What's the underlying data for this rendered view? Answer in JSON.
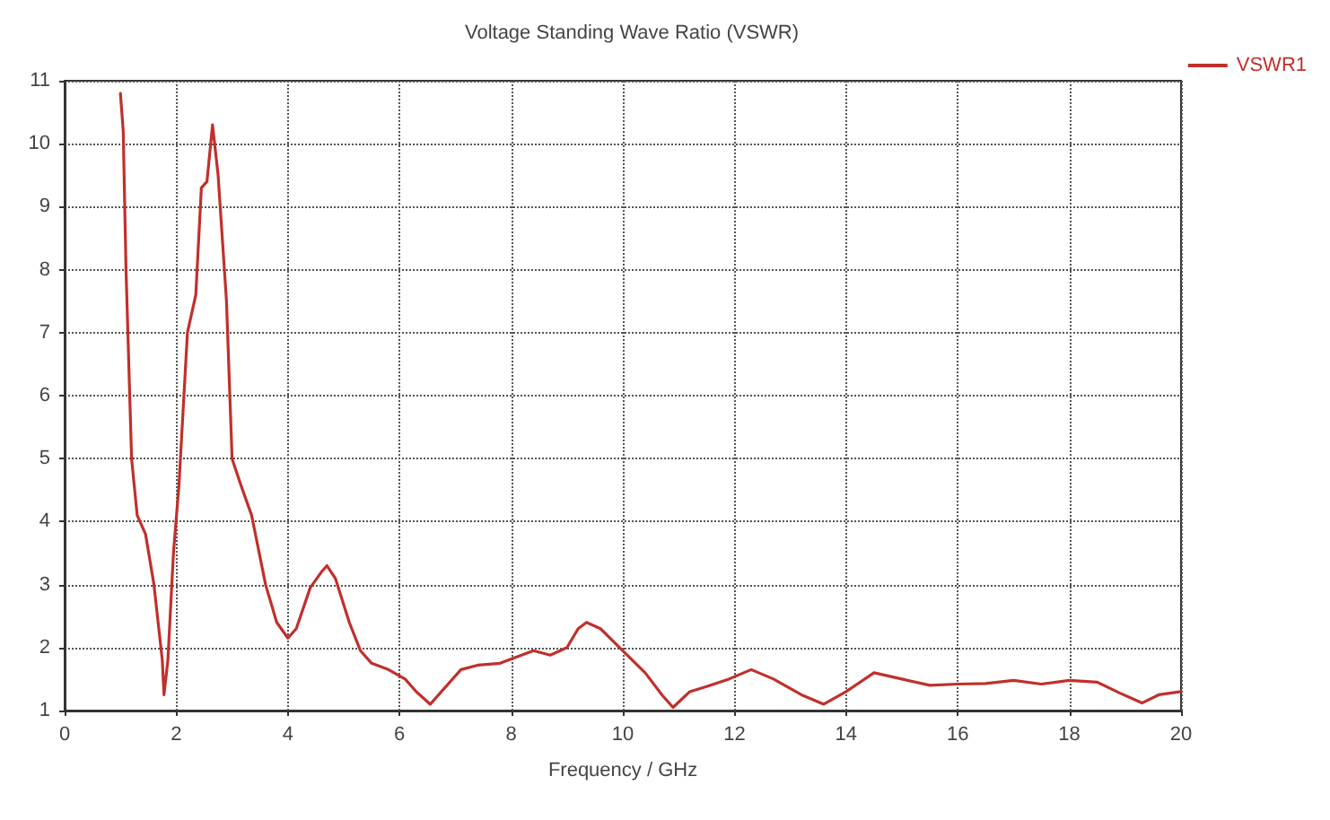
{
  "chart_data": {
    "type": "line",
    "title": "Voltage Standing Wave Ratio (VSWR)",
    "xlabel": "Frequency / GHz",
    "xlim": [
      0,
      20
    ],
    "xticks": [
      0,
      2,
      4,
      6,
      8,
      10,
      12,
      14,
      16,
      18,
      20
    ],
    "ylim": [
      1,
      11
    ],
    "yticks": [
      1,
      2,
      3,
      4,
      5,
      6,
      7,
      8,
      9,
      10,
      11
    ],
    "grid": true,
    "legend": "top right",
    "marker": "none",
    "line_style": "solid",
    "series": [
      {
        "name": "VSWR1",
        "color": "#c0302c",
        "x": [
          1.0,
          1.05,
          1.1,
          1.2,
          1.3,
          1.45,
          1.6,
          1.75,
          1.78,
          1.85,
          1.95,
          2.05,
          2.2,
          2.35,
          2.45,
          2.55,
          2.65,
          2.75,
          2.9,
          3.0,
          3.15,
          3.35,
          3.6,
          3.8,
          4.0,
          4.15,
          4.4,
          4.6,
          4.7,
          4.85,
          5.1,
          5.3,
          5.5,
          5.8,
          6.1,
          6.3,
          6.55,
          6.8,
          7.1,
          7.4,
          7.8,
          8.1,
          8.4,
          8.7,
          9.0,
          9.2,
          9.35,
          9.6,
          10.0,
          10.4,
          10.7,
          10.9,
          11.2,
          11.5,
          11.9,
          12.3,
          12.7,
          13.2,
          13.6,
          14.0,
          14.5,
          15.0,
          15.5,
          16.0,
          16.5,
          17.0,
          17.5,
          18.0,
          18.5,
          18.9,
          19.3,
          19.6,
          20.0
        ],
        "values": [
          10.8,
          10.2,
          8,
          5,
          4.1,
          3.8,
          3.0,
          1.8,
          1.25,
          1.8,
          3.5,
          4.6,
          7.0,
          7.6,
          9.3,
          9.4,
          10.3,
          9.5,
          7.5,
          5.0,
          4.6,
          4.1,
          3.0,
          2.4,
          2.15,
          2.3,
          2.95,
          3.2,
          3.3,
          3.1,
          2.4,
          1.95,
          1.75,
          1.65,
          1.5,
          1.3,
          1.1,
          1.35,
          1.65,
          1.72,
          1.75,
          1.85,
          1.95,
          1.88,
          2.0,
          2.3,
          2.4,
          2.3,
          1.95,
          1.6,
          1.25,
          1.05,
          1.3,
          1.38,
          1.5,
          1.65,
          1.5,
          1.25,
          1.1,
          1.3,
          1.6,
          1.5,
          1.4,
          1.42,
          1.43,
          1.48,
          1.42,
          1.48,
          1.45,
          1.28,
          1.12,
          1.25,
          1.3
        ]
      }
    ]
  }
}
